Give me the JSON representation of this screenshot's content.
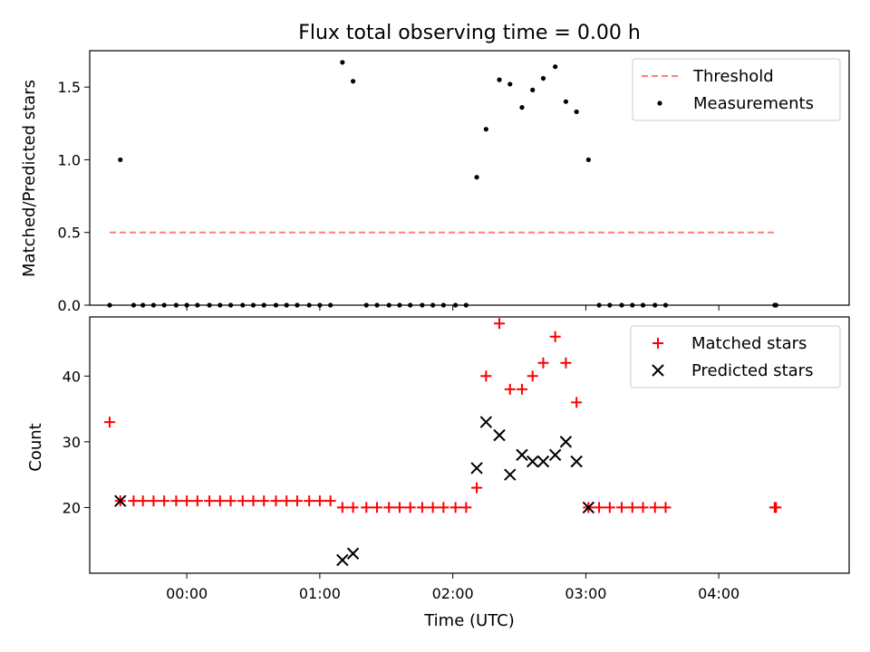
{
  "title": "Flux total observing time = 0.00 h",
  "xlabel": "Time (UTC)",
  "x_tick_labels": [
    "00:00",
    "01:00",
    "02:00",
    "03:00",
    "04:00"
  ],
  "colors": {
    "threshold": "#ff7f7f",
    "measurements": "#000000",
    "matched": "#ff0000",
    "predicted": "#000000"
  },
  "chart_data": [
    {
      "type": "scatter",
      "ylabel": "Matched/Predicted stars",
      "x_unit": "hours UTC",
      "xlim": [
        -0.73,
        4.98
      ],
      "ylim": [
        0,
        1.75
      ],
      "y_ticks": [
        "0.0",
        "0.5",
        "1.0",
        "1.5"
      ],
      "legend": {
        "position": "top-right",
        "entries": [
          "Threshold",
          "Measurements"
        ]
      },
      "series": [
        {
          "name": "Threshold",
          "kind": "dashed-line",
          "x": [
            -0.58,
            4.42
          ],
          "y": [
            0.5,
            0.5
          ]
        },
        {
          "name": "Measurements",
          "kind": "points",
          "x": [
            -0.58,
            -0.5,
            -0.4,
            -0.33,
            -0.25,
            -0.17,
            -0.08,
            0.0,
            0.08,
            0.17,
            0.25,
            0.33,
            0.42,
            0.5,
            0.58,
            0.67,
            0.75,
            0.83,
            0.92,
            1.0,
            1.08,
            1.17,
            1.25,
            1.35,
            1.43,
            1.52,
            1.6,
            1.68,
            1.77,
            1.85,
            1.93,
            2.02,
            2.1,
            2.18,
            2.25,
            2.35,
            2.43,
            2.52,
            2.6,
            2.68,
            2.77,
            2.85,
            2.93,
            3.02,
            3.1,
            3.18,
            3.27,
            3.35,
            3.43,
            3.52,
            3.6,
            4.42,
            4.43
          ],
          "y": [
            0,
            1.0,
            0,
            0,
            0,
            0,
            0,
            0,
            0,
            0,
            0,
            0,
            0,
            0,
            0,
            0,
            0,
            0,
            0,
            0,
            0,
            1.67,
            1.54,
            0,
            0,
            0,
            0,
            0,
            0,
            0,
            0,
            0,
            0,
            0.88,
            1.21,
            1.55,
            1.52,
            1.36,
            1.48,
            1.56,
            1.64,
            1.4,
            1.33,
            1.0,
            0,
            0,
            0,
            0,
            0,
            0,
            0,
            0,
            0
          ]
        }
      ]
    },
    {
      "type": "scatter",
      "ylabel": "Count",
      "x_unit": "hours UTC",
      "xlim": [
        -0.73,
        4.98
      ],
      "ylim": [
        10,
        49
      ],
      "y_ticks": [
        "20",
        "30",
        "40"
      ],
      "legend": {
        "position": "top-right",
        "entries": [
          "Matched stars",
          "Predicted stars"
        ]
      },
      "series": [
        {
          "name": "Matched stars",
          "marker": "+",
          "x": [
            -0.58,
            -0.5,
            -0.4,
            -0.33,
            -0.25,
            -0.17,
            -0.08,
            0.0,
            0.08,
            0.17,
            0.25,
            0.33,
            0.42,
            0.5,
            0.58,
            0.67,
            0.75,
            0.83,
            0.92,
            1.0,
            1.08,
            1.17,
            1.25,
            1.35,
            1.43,
            1.52,
            1.6,
            1.68,
            1.77,
            1.85,
            1.93,
            2.02,
            2.1,
            2.18,
            2.25,
            2.35,
            2.43,
            2.52,
            2.6,
            2.68,
            2.77,
            2.85,
            2.93,
            3.02,
            3.1,
            3.18,
            3.27,
            3.35,
            3.43,
            3.52,
            3.6,
            4.42,
            4.43
          ],
          "y": [
            33,
            21,
            21,
            21,
            21,
            21,
            21,
            21,
            21,
            21,
            21,
            21,
            21,
            21,
            21,
            21,
            21,
            21,
            21,
            21,
            21,
            20,
            20,
            20,
            20,
            20,
            20,
            20,
            20,
            20,
            20,
            20,
            20,
            23,
            40,
            48,
            38,
            38,
            40,
            42,
            46,
            42,
            36,
            20,
            20,
            20,
            20,
            20,
            20,
            20,
            20,
            20,
            20
          ]
        },
        {
          "name": "Predicted stars",
          "marker": "x",
          "x": [
            -0.5,
            1.17,
            1.25,
            2.18,
            2.25,
            2.35,
            2.43,
            2.52,
            2.6,
            2.68,
            2.77,
            2.85,
            2.93,
            3.02
          ],
          "y": [
            21,
            12,
            13,
            26,
            33,
            31,
            25,
            28,
            27,
            27,
            28,
            30,
            27,
            20
          ]
        }
      ]
    }
  ]
}
